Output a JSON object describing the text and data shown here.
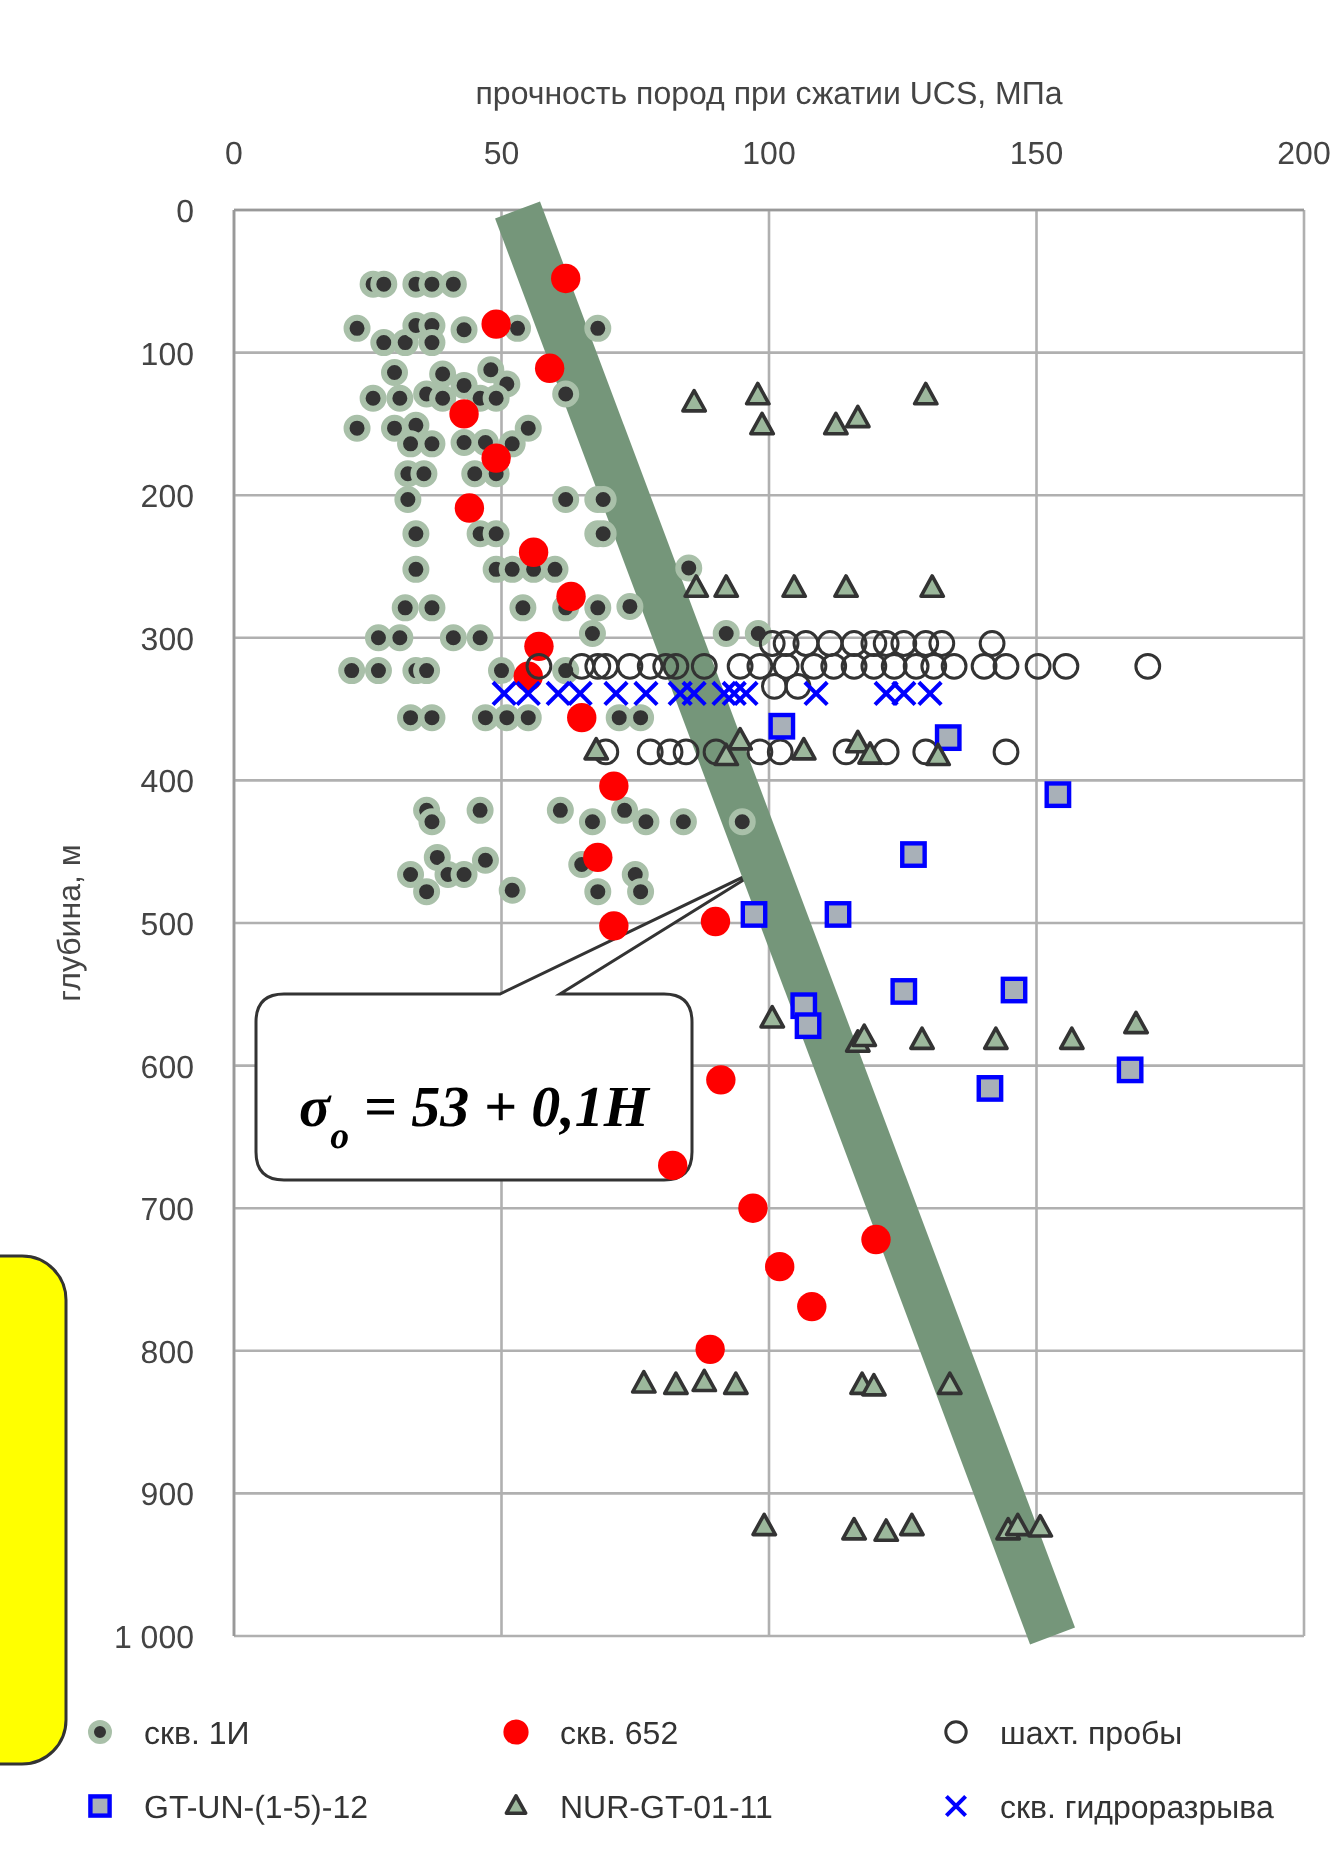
{
  "chart_data": {
    "type": "scatter",
    "xlabel": "прочность пород при сжатии UCS, МПа",
    "ylabel": "глубина, м",
    "xlim": [
      0,
      200
    ],
    "xticks": [
      0,
      50,
      100,
      150,
      200
    ],
    "ylim": [
      1000,
      0
    ],
    "yticks": [
      0,
      100,
      200,
      300,
      400,
      500,
      600,
      700,
      800,
      900,
      {
        "value": 1000,
        "label": "1 000"
      }
    ],
    "grid": true,
    "legend": "bottom",
    "annotations": [
      "σ$_{o}$ = 53 + 0,1H"
    ],
    "series": [
      {
        "type": "line",
        "color": "#75967a",
        "marker": "none",
        "x": [
          53,
          153
        ],
        "values": [
          0,
          1000
        ]
      },
      {
        "name": "скв. 1И",
        "color": "#333333",
        "marker": "circle",
        "x": [
          26,
          28,
          34,
          37,
          41,
          23,
          28,
          32,
          34,
          37,
          37,
          43,
          53,
          68,
          30,
          39,
          48,
          51,
          43,
          26,
          31,
          36,
          39,
          46,
          49,
          62,
          23,
          30,
          34,
          33,
          37,
          43,
          47,
          52,
          55,
          32.5,
          35.5,
          45,
          49,
          32.5,
          62,
          68,
          34,
          46,
          49,
          68,
          34,
          49,
          52,
          56,
          60,
          32,
          37,
          54,
          62,
          68,
          27,
          31,
          41,
          46,
          67,
          22,
          27,
          34,
          36,
          50,
          62,
          33,
          37,
          47,
          51,
          55,
          72,
          76,
          36,
          37,
          46,
          61,
          67,
          38,
          33,
          40,
          43,
          47,
          36,
          52,
          65,
          68,
          74,
          92,
          98,
          73,
          77,
          84,
          95,
          69,
          69,
          85,
          75,
          76
        ],
        "values": [
          52,
          52,
          52,
          52,
          52,
          83,
          93,
          93,
          81,
          81,
          93,
          84,
          83,
          83,
          114,
          115,
          112,
          122,
          123,
          132,
          132,
          129,
          132,
          132,
          132,
          129,
          153,
          153,
          151,
          164,
          164,
          163,
          163,
          164,
          153,
          185,
          185,
          185,
          185,
          203,
          203,
          203,
          227,
          227,
          227,
          227,
          252,
          252,
          252,
          252,
          252,
          279,
          279,
          279,
          279,
          279,
          300,
          300,
          300,
          300,
          297,
          323,
          323,
          323,
          323,
          323,
          323,
          356,
          356,
          356,
          356,
          356,
          356,
          356,
          421,
          429,
          421,
          421,
          429,
          454,
          466,
          466,
          466,
          456,
          478,
          477,
          459,
          478,
          278,
          297,
          297,
          421,
          429,
          429,
          429,
          203,
          227,
          251,
          466,
          478
        ]
      },
      {
        "name": "скв. 652",
        "color": "#ff0000",
        "marker": "circle",
        "x": [
          62,
          49,
          59,
          43,
          49,
          44,
          56,
          63,
          57,
          55,
          65,
          71,
          68,
          71,
          90,
          91,
          82,
          97,
          102,
          108,
          120,
          89
        ],
        "values": [
          48,
          80,
          111,
          143,
          174,
          209,
          240,
          271,
          306,
          327,
          356,
          404,
          454,
          502,
          499,
          610,
          670,
          700,
          741,
          769,
          722,
          799
        ]
      },
      {
        "name": "шахт. пробы",
        "color": "#333333",
        "marker": "circle",
        "x": [
          100.6,
          103.2,
          106.9,
          111.4,
          115.9,
          119.6,
          121.9,
          125.2,
          129.3,
          132.3,
          141.7,
          57,
          65,
          68,
          69.5,
          74,
          77.8,
          80.7,
          82.6,
          87.9,
          94.6,
          98.3,
          103.2,
          108.4,
          112.1,
          115.9,
          119.6,
          123.4,
          127.5,
          130.8,
          134.6,
          140.2,
          144.3,
          150.3,
          155.5,
          170.8,
          101,
          105.4,
          69.5,
          77.8,
          81.5,
          84.5,
          90.1,
          98.3,
          102.1,
          114.4,
          121.9,
          129.3,
          144.3
        ],
        "values": [
          304,
          304,
          304,
          304,
          304,
          304,
          304,
          304,
          304,
          304,
          304,
          320,
          320,
          320,
          320,
          320,
          320,
          320,
          320,
          320,
          320,
          320,
          320,
          320,
          320,
          320,
          320,
          320,
          320,
          320,
          320,
          320,
          320,
          320,
          320,
          320,
          334,
          334,
          380,
          380,
          380,
          380,
          380,
          380,
          380,
          380,
          380,
          380,
          380
        ]
      },
      {
        "name": "GT-UN-(1-5)-12",
        "color": "#0000ff",
        "marker": "square",
        "x": [
          102.4,
          133.5,
          154,
          127,
          97.2,
          112.9,
          106.5,
          107.3,
          125.2,
          145.8,
          141.3,
          167.5
        ],
        "values": [
          362,
          370,
          410,
          452,
          494,
          494,
          558,
          572,
          548,
          547,
          616,
          603
        ]
      },
      {
        "name": "NUR-GT-01-11",
        "color": "#333333",
        "marker": "triangle",
        "x": [
          86,
          97.9,
          98.7,
          112.5,
          116.6,
          129.3,
          86.4,
          92,
          104.7,
          114.4,
          130.5,
          67.7,
          94.6,
          92,
          106.5,
          116.6,
          118.9,
          131.6,
          100.6,
          116.6,
          117.8,
          128.6,
          142.4,
          156.6,
          168.6,
          76.6,
          82.6,
          87.9,
          93.8,
          117.4,
          119.6,
          133.8,
          99.1,
          115.9,
          121.9,
          126.7,
          144.7,
          146.5,
          150.7
        ],
        "values": [
          135,
          130,
          151,
          151,
          146,
          130,
          265,
          265,
          265,
          265,
          265,
          379,
          372,
          383,
          379,
          374,
          382,
          383,
          567,
          584,
          580,
          582,
          582,
          582,
          571,
          823,
          824,
          822,
          824,
          824,
          825,
          824,
          923,
          926,
          927,
          923,
          926,
          923,
          924
        ]
      },
      {
        "name": "скв. гидроразрыва",
        "color": "#0000ff",
        "marker": "cross",
        "x": [
          50.5,
          55,
          60.6,
          64.7,
          71.4,
          77,
          83.4,
          86,
          91.6,
          93.5,
          95.7,
          108.8,
          121.9,
          125.2,
          130.1
        ],
        "values": [
          339,
          339,
          339,
          339,
          339,
          339,
          339,
          339,
          339,
          339,
          339,
          339,
          339,
          339,
          339
        ]
      }
    ]
  }
}
